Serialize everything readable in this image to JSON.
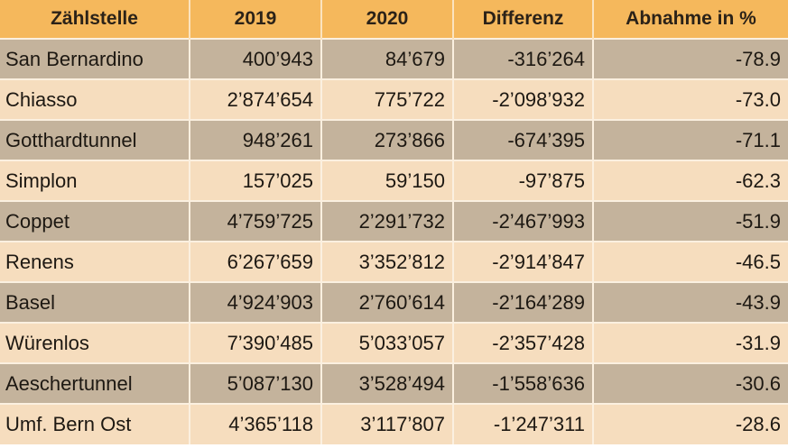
{
  "table": {
    "headers": [
      "Zählstelle",
      "2019",
      "2020",
      "Differenz",
      "Abnahme in %"
    ],
    "rows": [
      [
        "San Bernardino",
        "400’943",
        "84’679",
        "-316’264",
        "-78.9"
      ],
      [
        "Chiasso",
        "2’874’654",
        "775’722",
        "-2’098’932",
        "-73.0"
      ],
      [
        "Gotthardtunnel",
        "948’261",
        "273’866",
        "-674’395",
        "-71.1"
      ],
      [
        "Simplon",
        "157’025",
        "59’150",
        "-97’875",
        "-62.3"
      ],
      [
        "Coppet",
        "4’759’725",
        "2’291’732",
        "-2’467’993",
        "-51.9"
      ],
      [
        "Renens",
        "6’267’659",
        "3’352’812",
        "-2’914’847",
        "-46.5"
      ],
      [
        "Basel",
        "4’924’903",
        "2’760’614",
        "-2’164’289",
        "-43.9"
      ],
      [
        "Würenlos",
        "7’390’485",
        "5’033’057",
        "-2’357’428",
        "-31.9"
      ],
      [
        "Aeschertunnel",
        "5’087’130",
        "3’528’494",
        "-1’558’636",
        "-30.6"
      ],
      [
        "Umf. Bern Ost",
        "4’365’118",
        "3’117’807",
        "-1’247’311",
        "-28.6"
      ]
    ]
  },
  "colors": {
    "header_bg": "#f5b85c",
    "row_dark": "#c4b39c",
    "row_light": "#f6ddbe"
  }
}
